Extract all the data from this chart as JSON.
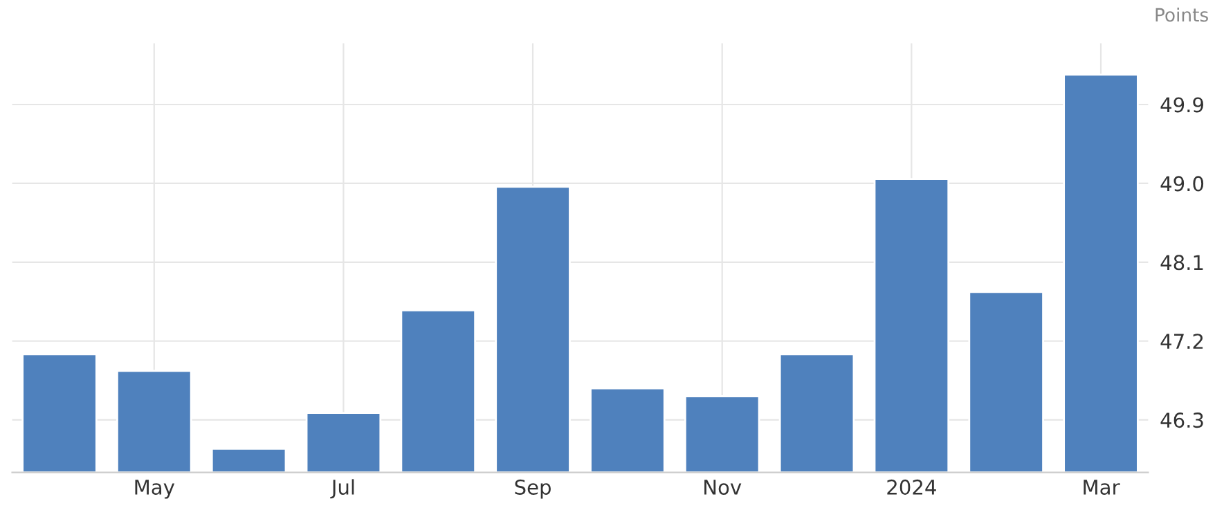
{
  "chart_data": {
    "type": "bar",
    "ylabel": "Points",
    "categories": [
      null,
      "May",
      null,
      "Jul",
      null,
      "Sep",
      null,
      "Nov",
      null,
      "2024",
      null,
      "Mar"
    ],
    "values": [
      47.05,
      46.86,
      45.97,
      46.38,
      47.55,
      48.96,
      46.66,
      46.57,
      47.05,
      49.05,
      47.76,
      50.24
    ],
    "color": "#4f81bd",
    "ylim": [
      45.7,
      50.6
    ],
    "yticks": [
      46.3,
      47.2,
      48.1,
      {
        "value": 49,
        "label": "49.0"
      },
      49.9
    ],
    "grid": true
  }
}
